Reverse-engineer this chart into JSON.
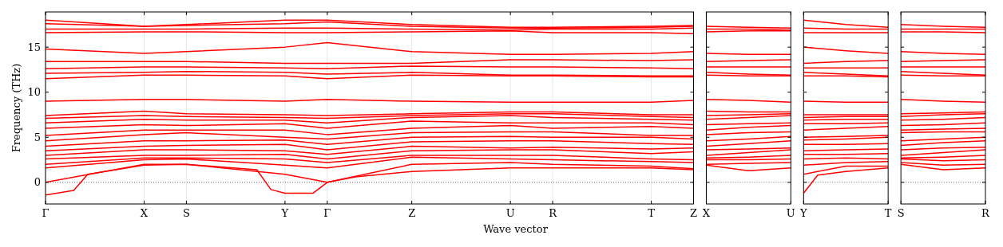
{
  "chart_data": [
    {
      "type": "line",
      "ylabel": "Frequency (THz)",
      "xlabel": "Wave vector",
      "ylim": [
        -2.4,
        18.9
      ],
      "yticks": [
        0,
        5,
        10,
        15
      ],
      "grid": "x",
      "ref_lines": [
        {
          "axis": "y",
          "value": 0,
          "color": "#000000",
          "line_style": "dotted"
        }
      ],
      "categories": [
        "Γ",
        null,
        null,
        null,
        null,
        null,
        null,
        "X",
        null,
        null,
        "S",
        null,
        null,
        null,
        null,
        null,
        null,
        "Y",
        null,
        null,
        "Γ",
        null,
        null,
        null,
        null,
        null,
        "Z",
        null,
        null,
        null,
        null,
        null,
        null,
        "U",
        null,
        null,
        "R",
        null,
        null,
        null,
        null,
        null,
        null,
        "T",
        null,
        null,
        "Z"
      ],
      "series": [
        {
          "color": "#ff0000",
          "values": [
            -1.4,
            null,
            -0.9,
            0.9,
            null,
            null,
            null,
            1.9,
            null,
            null,
            2.0,
            null,
            null,
            null,
            null,
            1.4,
            -0.8,
            -1.2,
            null,
            -1.2,
            0,
            null,
            0.6,
            null,
            null,
            null,
            1.2,
            null,
            null,
            null,
            null,
            null,
            null,
            1.6,
            null,
            null,
            1.6,
            null,
            null,
            null,
            null,
            null,
            null,
            1.6,
            null,
            null,
            1.4
          ]
        },
        {
          "color": "#ff0000",
          "values": [
            0,
            null,
            null,
            null,
            null,
            null,
            null,
            2.0,
            null,
            null,
            2.0,
            null,
            null,
            null,
            null,
            null,
            null,
            0.9,
            null,
            null,
            0,
            null,
            null,
            null,
            null,
            null,
            2.0,
            null,
            null,
            null,
            null,
            null,
            null,
            2.2,
            null,
            null,
            2.0,
            null,
            null,
            null,
            null,
            null,
            null,
            1.8,
            null,
            null,
            1.5
          ]
        },
        {
          "color": "#ff0000",
          "values": [
            1.6,
            null,
            null,
            null,
            null,
            null,
            null,
            2.5,
            null,
            null,
            2.6,
            null,
            null,
            null,
            null,
            null,
            null,
            1.9,
            null,
            null,
            1.6,
            null,
            null,
            null,
            null,
            null,
            2.8,
            null,
            null,
            null,
            null,
            null,
            null,
            2.6,
            null,
            null,
            2.5,
            null,
            null,
            null,
            null,
            null,
            null,
            2.3,
            null,
            null,
            2.2
          ]
        },
        {
          "color": "#ff0000",
          "values": [
            2.0,
            null,
            null,
            null,
            null,
            null,
            null,
            2.7,
            null,
            null,
            2.7,
            null,
            null,
            null,
            null,
            null,
            null,
            2.6,
            null,
            null,
            2.2,
            null,
            null,
            null,
            null,
            null,
            3.0,
            null,
            null,
            null,
            null,
            null,
            null,
            3.0,
            null,
            null,
            3.0,
            null,
            null,
            null,
            null,
            null,
            null,
            2.6,
            null,
            null,
            2.5
          ]
        },
        {
          "color": "#ff0000",
          "values": [
            2.6,
            null,
            null,
            null,
            null,
            null,
            null,
            3.0,
            null,
            null,
            3.0,
            null,
            null,
            null,
            null,
            null,
            null,
            3.1,
            null,
            null,
            2.6,
            null,
            null,
            null,
            null,
            null,
            3.5,
            null,
            null,
            null,
            null,
            null,
            null,
            3.6,
            null,
            null,
            3.6,
            null,
            null,
            null,
            null,
            null,
            null,
            3.2,
            null,
            null,
            3.4
          ]
        },
        {
          "color": "#ff0000",
          "values": [
            3.0,
            null,
            null,
            null,
            null,
            null,
            null,
            3.6,
            null,
            null,
            3.6,
            null,
            null,
            null,
            null,
            null,
            null,
            3.5,
            null,
            null,
            3.1,
            null,
            null,
            null,
            null,
            null,
            4.0,
            null,
            null,
            null,
            null,
            null,
            null,
            3.8,
            null,
            null,
            3.9,
            null,
            null,
            null,
            null,
            null,
            null,
            3.7,
            null,
            null,
            3.8
          ]
        },
        {
          "color": "#ff0000",
          "values": [
            3.5,
            null,
            null,
            null,
            null,
            null,
            null,
            4.0,
            null,
            null,
            4.1,
            null,
            null,
            null,
            null,
            null,
            null,
            4.2,
            null,
            null,
            3.6,
            null,
            null,
            null,
            null,
            null,
            4.5,
            null,
            null,
            null,
            null,
            null,
            null,
            4.6,
            null,
            null,
            4.6,
            null,
            null,
            null,
            null,
            null,
            null,
            4.3,
            null,
            null,
            4.2
          ]
        },
        {
          "color": "#ff0000",
          "values": [
            4.0,
            null,
            null,
            null,
            null,
            null,
            null,
            4.6,
            null,
            null,
            4.6,
            null,
            null,
            null,
            null,
            null,
            null,
            4.7,
            null,
            null,
            4.2,
            null,
            null,
            null,
            null,
            null,
            5.0,
            null,
            null,
            null,
            null,
            null,
            null,
            5.1,
            null,
            null,
            5.0,
            null,
            null,
            null,
            null,
            null,
            null,
            5.0,
            null,
            null,
            4.8
          ]
        },
        {
          "color": "#ff0000",
          "values": [
            4.6,
            null,
            null,
            null,
            null,
            null,
            null,
            5.3,
            null,
            null,
            5.5,
            null,
            null,
            null,
            null,
            null,
            null,
            5.0,
            null,
            null,
            4.8,
            null,
            null,
            null,
            null,
            null,
            5.5,
            null,
            null,
            null,
            null,
            null,
            null,
            5.6,
            null,
            null,
            5.6,
            null,
            null,
            null,
            null,
            null,
            null,
            5.2,
            null,
            null,
            5.2
          ]
        },
        {
          "color": "#ff0000",
          "values": [
            5.2,
            null,
            null,
            null,
            null,
            null,
            null,
            5.8,
            null,
            null,
            5.8,
            null,
            null,
            null,
            null,
            null,
            null,
            5.8,
            null,
            null,
            5.3,
            null,
            null,
            null,
            null,
            null,
            6.0,
            null,
            null,
            null,
            null,
            null,
            null,
            6.3,
            null,
            null,
            6.0,
            null,
            null,
            null,
            null,
            null,
            null,
            6.2,
            null,
            null,
            6.0
          ]
        },
        {
          "color": "#ff0000",
          "values": [
            6.0,
            null,
            null,
            null,
            null,
            null,
            null,
            6.4,
            null,
            null,
            6.3,
            null,
            null,
            null,
            null,
            null,
            null,
            6.5,
            null,
            null,
            6.0,
            null,
            null,
            null,
            null,
            null,
            6.8,
            null,
            null,
            null,
            null,
            null,
            null,
            6.6,
            null,
            null,
            6.6,
            null,
            null,
            null,
            null,
            null,
            null,
            6.6,
            null,
            null,
            6.4
          ]
        },
        {
          "color": "#ff0000",
          "values": [
            6.6,
            null,
            null,
            null,
            null,
            null,
            null,
            7.0,
            null,
            null,
            6.9,
            null,
            null,
            null,
            null,
            null,
            null,
            6.9,
            null,
            null,
            6.6,
            null,
            null,
            null,
            null,
            null,
            7.2,
            null,
            null,
            null,
            null,
            null,
            null,
            7.4,
            null,
            null,
            7.2,
            null,
            null,
            null,
            null,
            null,
            null,
            7.0,
            null,
            null,
            6.9
          ]
        },
        {
          "color": "#ff0000",
          "values": [
            7.1,
            null,
            null,
            null,
            null,
            null,
            null,
            7.4,
            null,
            null,
            7.3,
            null,
            null,
            null,
            null,
            null,
            null,
            7.2,
            null,
            null,
            7.1,
            null,
            null,
            null,
            null,
            null,
            7.4,
            null,
            null,
            null,
            null,
            null,
            null,
            7.6,
            null,
            null,
            7.6,
            null,
            null,
            null,
            null,
            null,
            null,
            7.3,
            null,
            null,
            7.2
          ]
        },
        {
          "color": "#ff0000",
          "values": [
            7.4,
            null,
            null,
            null,
            null,
            null,
            null,
            7.9,
            null,
            null,
            7.6,
            null,
            null,
            null,
            null,
            null,
            null,
            7.5,
            null,
            null,
            7.4,
            null,
            null,
            null,
            null,
            null,
            7.6,
            null,
            null,
            null,
            null,
            null,
            null,
            7.8,
            null,
            null,
            7.8,
            null,
            null,
            null,
            null,
            null,
            null,
            7.5,
            null,
            null,
            7.5
          ]
        },
        {
          "color": "#ff0000",
          "values": [
            9.0,
            null,
            null,
            null,
            null,
            null,
            null,
            9.2,
            null,
            null,
            9.2,
            null,
            null,
            null,
            null,
            null,
            null,
            9.0,
            null,
            null,
            9.2,
            null,
            null,
            null,
            null,
            null,
            9.0,
            null,
            null,
            null,
            null,
            null,
            null,
            8.9,
            null,
            null,
            8.9,
            null,
            null,
            null,
            null,
            null,
            null,
            8.9,
            null,
            null,
            9.1
          ]
        },
        {
          "color": "#ff0000",
          "values": [
            11.5,
            null,
            null,
            null,
            null,
            null,
            null,
            11.9,
            null,
            null,
            11.9,
            null,
            null,
            null,
            null,
            null,
            null,
            11.8,
            null,
            null,
            11.5,
            null,
            null,
            null,
            null,
            null,
            11.9,
            null,
            null,
            null,
            null,
            null,
            null,
            11.8,
            null,
            null,
            11.8,
            null,
            null,
            null,
            null,
            null,
            null,
            11.7,
            null,
            null,
            11.7
          ]
        },
        {
          "color": "#ff0000",
          "values": [
            12.1,
            null,
            null,
            null,
            null,
            null,
            null,
            12.2,
            null,
            null,
            12.3,
            null,
            null,
            null,
            null,
            null,
            null,
            12.2,
            null,
            null,
            12.0,
            null,
            null,
            null,
            null,
            null,
            12.2,
            null,
            null,
            null,
            null,
            null,
            null,
            11.9,
            null,
            null,
            11.9,
            null,
            null,
            null,
            null,
            null,
            null,
            11.8,
            null,
            null,
            11.8
          ]
        },
        {
          "color": "#ff0000",
          "values": [
            12.6,
            null,
            null,
            null,
            null,
            null,
            null,
            12.8,
            null,
            null,
            12.8,
            null,
            null,
            null,
            null,
            null,
            null,
            12.7,
            null,
            null,
            12.6,
            null,
            null,
            null,
            null,
            null,
            12.9,
            null,
            null,
            null,
            null,
            null,
            null,
            12.8,
            null,
            null,
            12.8,
            null,
            null,
            null,
            null,
            null,
            null,
            12.7,
            null,
            null,
            12.6
          ]
        },
        {
          "color": "#ff0000",
          "values": [
            13.4,
            null,
            null,
            null,
            null,
            null,
            null,
            13.4,
            null,
            null,
            13.4,
            null,
            null,
            null,
            null,
            null,
            null,
            13.2,
            null,
            null,
            13.2,
            null,
            null,
            null,
            null,
            null,
            13.2,
            null,
            null,
            null,
            null,
            null,
            null,
            13.6,
            null,
            null,
            13.6,
            null,
            null,
            null,
            null,
            null,
            null,
            13.5,
            null,
            null,
            13.6
          ]
        },
        {
          "color": "#ff0000",
          "values": [
            14.8,
            null,
            null,
            null,
            null,
            null,
            null,
            14.3,
            null,
            null,
            14.5,
            null,
            null,
            null,
            null,
            null,
            null,
            15.0,
            null,
            null,
            15.5,
            null,
            null,
            null,
            null,
            null,
            14.5,
            null,
            null,
            null,
            null,
            null,
            null,
            14.2,
            null,
            null,
            14.2,
            null,
            null,
            null,
            null,
            null,
            null,
            14.3,
            null,
            null,
            14.5
          ]
        },
        {
          "color": "#ff0000",
          "values": [
            16.6,
            null,
            null,
            null,
            null,
            null,
            null,
            16.7,
            null,
            null,
            16.7,
            null,
            null,
            null,
            null,
            null,
            null,
            16.6,
            null,
            null,
            16.6,
            null,
            null,
            null,
            null,
            null,
            16.7,
            null,
            null,
            null,
            null,
            null,
            null,
            16.8,
            null,
            null,
            16.6,
            null,
            null,
            null,
            null,
            null,
            null,
            16.6,
            null,
            null,
            16.5
          ]
        },
        {
          "color": "#ff0000",
          "values": [
            17.0,
            null,
            null,
            null,
            null,
            null,
            null,
            17.0,
            null,
            null,
            17.0,
            null,
            null,
            null,
            null,
            null,
            null,
            17.1,
            null,
            null,
            17.1,
            null,
            null,
            null,
            null,
            null,
            17.0,
            null,
            null,
            null,
            null,
            null,
            null,
            16.9,
            null,
            null,
            17.0,
            null,
            null,
            null,
            null,
            null,
            null,
            17.0,
            null,
            null,
            17.1
          ]
        },
        {
          "color": "#ff0000",
          "values": [
            17.6,
            null,
            null,
            null,
            null,
            null,
            null,
            17.3,
            null,
            null,
            17.4,
            null,
            null,
            null,
            null,
            null,
            null,
            17.6,
            null,
            null,
            17.8,
            null,
            null,
            null,
            null,
            null,
            17.3,
            null,
            null,
            null,
            null,
            null,
            null,
            17.1,
            null,
            null,
            17.1,
            null,
            null,
            null,
            null,
            null,
            null,
            17.2,
            null,
            null,
            17.3
          ]
        },
        {
          "color": "#ff0000",
          "values": [
            18.0,
            null,
            null,
            null,
            null,
            null,
            null,
            17.3,
            null,
            null,
            17.5,
            null,
            null,
            null,
            null,
            null,
            null,
            18.0,
            null,
            null,
            18.0,
            null,
            null,
            null,
            null,
            null,
            17.5,
            null,
            null,
            null,
            null,
            null,
            null,
            17.2,
            null,
            null,
            17.2,
            null,
            null,
            null,
            null,
            null,
            null,
            17.3,
            null,
            null,
            17.4
          ]
        }
      ]
    },
    {
      "type": "line",
      "ylim": [
        -2.4,
        18.9
      ],
      "yticks": [
        0,
        5,
        10,
        15
      ],
      "tick_labels": "x",
      "ref_lines": [
        {
          "axis": "y",
          "value": 0,
          "color": "#000000",
          "line_style": "dotted"
        }
      ],
      "categories": [
        "X",
        null,
        null,
        null,
        null,
        null,
        "U"
      ],
      "series": [
        {
          "color": "#ff0000",
          "values": [
            1.9,
            null,
            null,
            1.3,
            null,
            null,
            1.6
          ]
        },
        {
          "color": "#ff0000",
          "values": [
            2.0,
            null,
            null,
            2.1,
            null,
            null,
            2.2
          ]
        },
        {
          "color": "#ff0000",
          "values": [
            2.5,
            null,
            null,
            2.5,
            null,
            null,
            2.6
          ]
        },
        {
          "color": "#ff0000",
          "values": [
            2.7,
            null,
            null,
            2.8,
            null,
            null,
            3.0
          ]
        },
        {
          "color": "#ff0000",
          "values": [
            3.0,
            null,
            null,
            3.3,
            null,
            null,
            3.6
          ]
        },
        {
          "color": "#ff0000",
          "values": [
            3.6,
            null,
            null,
            3.7,
            null,
            null,
            3.8
          ]
        },
        {
          "color": "#ff0000",
          "values": [
            4.0,
            null,
            null,
            4.3,
            null,
            null,
            4.6
          ]
        },
        {
          "color": "#ff0000",
          "values": [
            4.6,
            null,
            null,
            4.8,
            null,
            null,
            5.1
          ]
        },
        {
          "color": "#ff0000",
          "values": [
            5.3,
            null,
            null,
            5.5,
            null,
            null,
            5.6
          ]
        },
        {
          "color": "#ff0000",
          "values": [
            5.8,
            null,
            null,
            6.1,
            null,
            null,
            6.3
          ]
        },
        {
          "color": "#ff0000",
          "values": [
            6.4,
            null,
            null,
            6.5,
            null,
            null,
            6.6
          ]
        },
        {
          "color": "#ff0000",
          "values": [
            7.0,
            null,
            null,
            7.2,
            null,
            null,
            7.4
          ]
        },
        {
          "color": "#ff0000",
          "values": [
            7.4,
            null,
            null,
            7.5,
            null,
            null,
            7.6
          ]
        },
        {
          "color": "#ff0000",
          "values": [
            7.9,
            null,
            null,
            7.8,
            null,
            null,
            7.8
          ]
        },
        {
          "color": "#ff0000",
          "values": [
            9.2,
            null,
            null,
            9.1,
            null,
            null,
            8.9
          ]
        },
        {
          "color": "#ff0000",
          "values": [
            11.9,
            null,
            null,
            11.8,
            null,
            null,
            11.8
          ]
        },
        {
          "color": "#ff0000",
          "values": [
            12.2,
            null,
            null,
            12.0,
            null,
            null,
            11.9
          ]
        },
        {
          "color": "#ff0000",
          "values": [
            12.8,
            null,
            null,
            12.8,
            null,
            null,
            12.8
          ]
        },
        {
          "color": "#ff0000",
          "values": [
            13.4,
            null,
            null,
            13.5,
            null,
            null,
            13.6
          ]
        },
        {
          "color": "#ff0000",
          "values": [
            14.3,
            null,
            null,
            14.2,
            null,
            null,
            14.2
          ]
        },
        {
          "color": "#ff0000",
          "values": [
            16.7,
            null,
            null,
            16.8,
            null,
            null,
            16.8
          ]
        },
        {
          "color": "#ff0000",
          "values": [
            17.0,
            null,
            null,
            17.0,
            null,
            null,
            16.9
          ]
        },
        {
          "color": "#ff0000",
          "values": [
            17.3,
            null,
            null,
            17.2,
            null,
            null,
            17.1
          ]
        }
      ]
    },
    {
      "type": "line",
      "ylim": [
        -2.4,
        18.9
      ],
      "yticks": [
        0,
        5,
        10,
        15
      ],
      "tick_labels": "x",
      "ref_lines": [
        {
          "axis": "y",
          "value": 0,
          "color": "#000000",
          "line_style": "dotted"
        }
      ],
      "categories": [
        "Y",
        null,
        null,
        null,
        null,
        null,
        "T"
      ],
      "series": [
        {
          "color": "#ff0000",
          "values": [
            -1.2,
            0.8,
            null,
            1.2,
            null,
            null,
            1.6
          ]
        },
        {
          "color": "#ff0000",
          "values": [
            0.9,
            null,
            null,
            1.8,
            null,
            null,
            1.8
          ]
        },
        {
          "color": "#ff0000",
          "values": [
            1.9,
            null,
            null,
            2.2,
            null,
            null,
            2.3
          ]
        },
        {
          "color": "#ff0000",
          "values": [
            2.6,
            null,
            null,
            2.7,
            null,
            null,
            2.6
          ]
        },
        {
          "color": "#ff0000",
          "values": [
            3.1,
            null,
            null,
            3.1,
            null,
            null,
            3.2
          ]
        },
        {
          "color": "#ff0000",
          "values": [
            3.5,
            null,
            null,
            3.6,
            null,
            null,
            3.7
          ]
        },
        {
          "color": "#ff0000",
          "values": [
            4.2,
            null,
            null,
            4.2,
            null,
            null,
            4.3
          ]
        },
        {
          "color": "#ff0000",
          "values": [
            4.7,
            null,
            null,
            4.8,
            null,
            null,
            5.0
          ]
        },
        {
          "color": "#ff0000",
          "values": [
            5.0,
            null,
            null,
            5.1,
            null,
            null,
            5.2
          ]
        },
        {
          "color": "#ff0000",
          "values": [
            5.8,
            null,
            null,
            6.0,
            null,
            null,
            6.2
          ]
        },
        {
          "color": "#ff0000",
          "values": [
            6.5,
            null,
            null,
            6.5,
            null,
            null,
            6.6
          ]
        },
        {
          "color": "#ff0000",
          "values": [
            6.9,
            null,
            null,
            7.0,
            null,
            null,
            7.0
          ]
        },
        {
          "color": "#ff0000",
          "values": [
            7.2,
            null,
            null,
            7.3,
            null,
            null,
            7.3
          ]
        },
        {
          "color": "#ff0000",
          "values": [
            7.5,
            null,
            null,
            7.5,
            null,
            null,
            7.5
          ]
        },
        {
          "color": "#ff0000",
          "values": [
            9.0,
            null,
            null,
            8.9,
            null,
            null,
            8.9
          ]
        },
        {
          "color": "#ff0000",
          "values": [
            11.8,
            null,
            null,
            11.8,
            null,
            null,
            11.7
          ]
        },
        {
          "color": "#ff0000",
          "values": [
            12.2,
            null,
            null,
            12.0,
            null,
            null,
            11.8
          ]
        },
        {
          "color": "#ff0000",
          "values": [
            12.7,
            null,
            null,
            12.7,
            null,
            null,
            12.7
          ]
        },
        {
          "color": "#ff0000",
          "values": [
            13.2,
            null,
            null,
            13.4,
            null,
            null,
            13.5
          ]
        },
        {
          "color": "#ff0000",
          "values": [
            15.0,
            null,
            null,
            14.6,
            null,
            null,
            14.3
          ]
        },
        {
          "color": "#ff0000",
          "values": [
            16.6,
            null,
            null,
            16.6,
            null,
            null,
            16.6
          ]
        },
        {
          "color": "#ff0000",
          "values": [
            17.1,
            null,
            null,
            17.0,
            null,
            null,
            17.0
          ]
        },
        {
          "color": "#ff0000",
          "values": [
            18.0,
            null,
            null,
            17.5,
            null,
            null,
            17.2
          ]
        }
      ]
    },
    {
      "type": "line",
      "ylim": [
        -2.4,
        18.9
      ],
      "yticks": [
        0,
        5,
        10,
        15
      ],
      "tick_labels": "x",
      "ref_lines": [
        {
          "axis": "y",
          "value": 0,
          "color": "#000000",
          "line_style": "dotted"
        }
      ],
      "categories": [
        "S",
        null,
        null,
        null,
        null,
        null,
        "R"
      ],
      "series": [
        {
          "color": "#ff0000",
          "values": [
            2.0,
            null,
            null,
            1.4,
            null,
            null,
            1.6
          ]
        },
        {
          "color": "#ff0000",
          "values": [
            2.2,
            null,
            null,
            1.9,
            null,
            null,
            2.0
          ]
        },
        {
          "color": "#ff0000",
          "values": [
            2.6,
            null,
            null,
            2.4,
            null,
            null,
            2.5
          ]
        },
        {
          "color": "#ff0000",
          "values": [
            2.7,
            null,
            null,
            2.8,
            null,
            null,
            3.0
          ]
        },
        {
          "color": "#ff0000",
          "values": [
            3.0,
            null,
            null,
            3.3,
            null,
            null,
            3.6
          ]
        },
        {
          "color": "#ff0000",
          "values": [
            3.6,
            null,
            null,
            3.8,
            null,
            null,
            3.9
          ]
        },
        {
          "color": "#ff0000",
          "values": [
            4.1,
            null,
            null,
            4.4,
            null,
            null,
            4.6
          ]
        },
        {
          "color": "#ff0000",
          "values": [
            4.6,
            null,
            null,
            4.8,
            null,
            null,
            5.0
          ]
        },
        {
          "color": "#ff0000",
          "values": [
            5.5,
            null,
            null,
            5.6,
            null,
            null,
            5.6
          ]
        },
        {
          "color": "#ff0000",
          "values": [
            5.8,
            null,
            null,
            5.9,
            null,
            null,
            6.0
          ]
        },
        {
          "color": "#ff0000",
          "values": [
            6.3,
            null,
            null,
            6.4,
            null,
            null,
            6.6
          ]
        },
        {
          "color": "#ff0000",
          "values": [
            6.9,
            null,
            null,
            7.0,
            null,
            null,
            7.2
          ]
        },
        {
          "color": "#ff0000",
          "values": [
            7.3,
            null,
            null,
            7.5,
            null,
            null,
            7.6
          ]
        },
        {
          "color": "#ff0000",
          "values": [
            7.6,
            null,
            null,
            7.7,
            null,
            null,
            7.8
          ]
        },
        {
          "color": "#ff0000",
          "values": [
            9.2,
            null,
            null,
            9.0,
            null,
            null,
            8.9
          ]
        },
        {
          "color": "#ff0000",
          "values": [
            11.9,
            null,
            null,
            11.8,
            null,
            null,
            11.8
          ]
        },
        {
          "color": "#ff0000",
          "values": [
            12.3,
            null,
            null,
            12.1,
            null,
            null,
            11.9
          ]
        },
        {
          "color": "#ff0000",
          "values": [
            12.8,
            null,
            null,
            12.8,
            null,
            null,
            12.8
          ]
        },
        {
          "color": "#ff0000",
          "values": [
            13.4,
            null,
            null,
            13.5,
            null,
            null,
            13.6
          ]
        },
        {
          "color": "#ff0000",
          "values": [
            14.5,
            null,
            null,
            14.3,
            null,
            null,
            14.2
          ]
        },
        {
          "color": "#ff0000",
          "values": [
            16.7,
            null,
            null,
            16.7,
            null,
            null,
            16.6
          ]
        },
        {
          "color": "#ff0000",
          "values": [
            17.0,
            null,
            null,
            17.0,
            null,
            null,
            17.0
          ]
        },
        {
          "color": "#ff0000",
          "values": [
            17.5,
            null,
            null,
            17.3,
            null,
            null,
            17.2
          ]
        }
      ]
    }
  ]
}
